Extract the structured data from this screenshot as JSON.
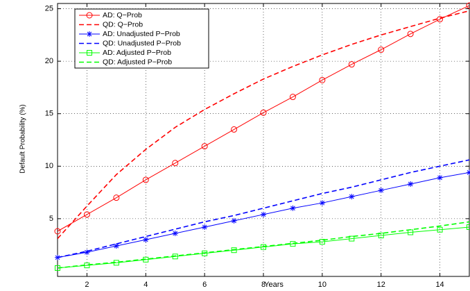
{
  "chart_data": {
    "type": "line",
    "xlabel": "Years",
    "ylabel": "Default Probability (%)",
    "x": [
      1,
      2,
      3,
      4,
      5,
      6,
      7,
      8,
      9,
      10,
      11,
      12,
      13,
      14,
      15
    ],
    "xlim": [
      1,
      15
    ],
    "xticks": [
      2,
      4,
      6,
      8,
      10,
      12,
      14
    ],
    "ylim": [
      -0.5,
      25.5
    ],
    "yticks": [
      5,
      10,
      15,
      20,
      25
    ],
    "grid": true,
    "legend": "upper left",
    "series": [
      {
        "name": "AD: Q−Prob",
        "color": "#ff0000",
        "dash": "solid",
        "marker": "circle",
        "values": [
          3.8,
          5.4,
          7.0,
          8.7,
          10.3,
          11.9,
          13.5,
          15.1,
          16.6,
          18.2,
          19.7,
          21.1,
          22.6,
          24.0,
          25.3
        ]
      },
      {
        "name": "QD: Q−Prob",
        "color": "#ff0000",
        "dash": "dashed",
        "marker": "none",
        "values": [
          3.1,
          6.2,
          9.2,
          11.6,
          13.7,
          15.4,
          16.9,
          18.3,
          19.5,
          20.6,
          21.6,
          22.5,
          23.3,
          24.1,
          24.8
        ]
      },
      {
        "name": "AD: Unadjusted P−Prob",
        "color": "#0000ff",
        "dash": "solid",
        "marker": "star",
        "values": [
          1.3,
          1.8,
          2.4,
          3.0,
          3.6,
          4.2,
          4.8,
          5.4,
          6.0,
          6.5,
          7.1,
          7.7,
          8.3,
          8.9,
          9.4
        ]
      },
      {
        "name": "QD: Unadjusted P−Prob",
        "color": "#0000ff",
        "dash": "dashed",
        "marker": "none",
        "values": [
          1.3,
          1.9,
          2.6,
          3.3,
          4.0,
          4.7,
          5.3,
          6.0,
          6.7,
          7.4,
          8.0,
          8.7,
          9.4,
          10.0,
          10.6
        ]
      },
      {
        "name": "AD: Adjusted P−Prob",
        "color": "#00ff00",
        "dash": "solid",
        "marker": "square",
        "values": [
          0.3,
          0.55,
          0.8,
          1.1,
          1.4,
          1.7,
          2.0,
          2.3,
          2.6,
          2.8,
          3.1,
          3.4,
          3.7,
          3.95,
          4.2
        ]
      },
      {
        "name": "QD: Adjusted P−Prob",
        "color": "#00ff00",
        "dash": "dashed",
        "marker": "none",
        "values": [
          0.3,
          0.6,
          0.85,
          1.15,
          1.45,
          1.75,
          2.05,
          2.35,
          2.65,
          2.95,
          3.3,
          3.6,
          3.95,
          4.3,
          4.7
        ]
      }
    ]
  }
}
